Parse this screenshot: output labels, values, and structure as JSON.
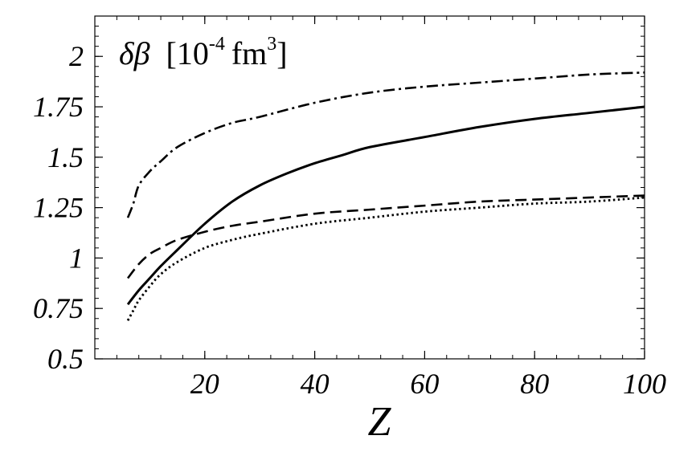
{
  "chart_data": {
    "type": "line",
    "title": "δβ [10-4 fm3]",
    "title_parts": {
      "symbol": "δβ",
      "bracket_open": "[",
      "base": "10",
      "exponent": "-4",
      "unit": "fm",
      "unit_exponent": "3",
      "bracket_close": "]"
    },
    "xlabel": "Z",
    "ylabel": "",
    "xlim": [
      0,
      100
    ],
    "ylim": [
      0.5,
      2.2
    ],
    "x_ticks": [
      20,
      40,
      60,
      80,
      100
    ],
    "x_tick_labels": [
      "20",
      "40",
      "60",
      "80",
      "100"
    ],
    "y_ticks": [
      0.5,
      0.75,
      1,
      1.25,
      1.5,
      1.75,
      2
    ],
    "y_tick_labels": [
      "0.5",
      "0.75",
      "1",
      "1.25",
      "1.5",
      "1.75",
      "2"
    ],
    "grid": false,
    "legend": "none",
    "series": [
      {
        "style": "solid",
        "x": [
          6,
          8,
          10,
          12,
          15,
          20,
          25,
          30,
          35,
          40,
          45,
          50,
          60,
          70,
          80,
          90,
          100
        ],
        "y": [
          0.77,
          0.84,
          0.9,
          0.96,
          1.04,
          1.17,
          1.28,
          1.36,
          1.42,
          1.47,
          1.51,
          1.55,
          1.6,
          1.65,
          1.69,
          1.72,
          1.75
        ]
      },
      {
        "style": "dashed",
        "x": [
          6,
          8,
          10,
          12,
          15,
          20,
          25,
          30,
          40,
          50,
          60,
          70,
          80,
          90,
          100
        ],
        "y": [
          0.9,
          0.97,
          1.02,
          1.05,
          1.09,
          1.13,
          1.16,
          1.18,
          1.22,
          1.24,
          1.26,
          1.28,
          1.29,
          1.3,
          1.31
        ]
      },
      {
        "style": "dotted",
        "x": [
          6,
          7,
          8,
          10,
          12,
          15,
          20,
          25,
          30,
          40,
          50,
          60,
          70,
          80,
          90,
          100
        ],
        "y": [
          0.69,
          0.74,
          0.79,
          0.86,
          0.92,
          0.98,
          1.05,
          1.09,
          1.12,
          1.17,
          1.2,
          1.23,
          1.25,
          1.27,
          1.28,
          1.3
        ]
      },
      {
        "style": "dash-dot",
        "x": [
          6,
          7,
          8,
          10,
          12,
          15,
          20,
          25,
          30,
          40,
          50,
          60,
          70,
          80,
          90,
          100
        ],
        "y": [
          1.2,
          1.27,
          1.36,
          1.43,
          1.48,
          1.55,
          1.62,
          1.67,
          1.7,
          1.77,
          1.82,
          1.85,
          1.87,
          1.89,
          1.91,
          1.92
        ]
      }
    ]
  }
}
